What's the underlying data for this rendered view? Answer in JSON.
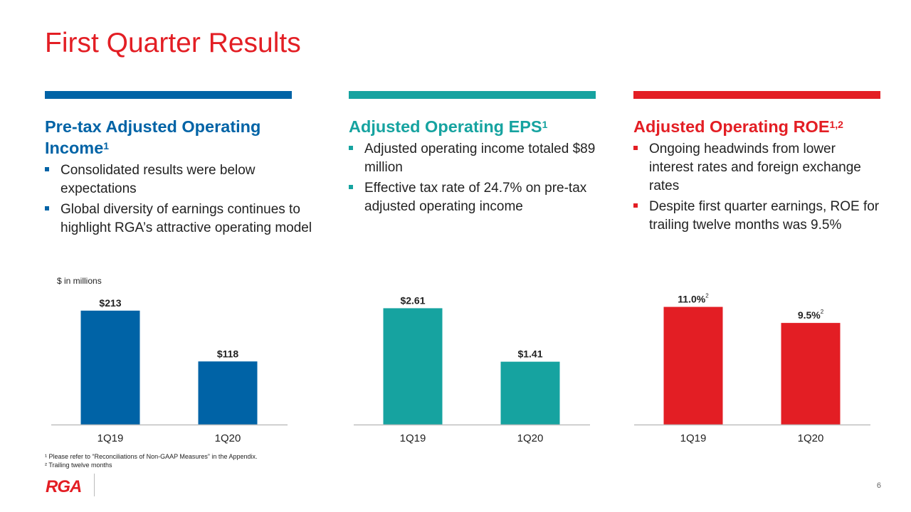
{
  "title": "First Quarter Results",
  "panels": [
    {
      "heading": "Pre-tax Adjusted Operating Income",
      "heading_line1": "Pre-tax Adjusted Operating",
      "heading_line2": "Income",
      "sup": "1",
      "color": "#0063a6",
      "bullets": [
        "Consolidated results were below expectations",
        "Global diversity of earnings continues to highlight RGA’s attractive operating model"
      ]
    },
    {
      "heading": "Adjusted Operating EPS",
      "sup": "1",
      "color": "#16a3a0",
      "bullets": [
        "Adjusted operating income totaled $89 million",
        "Effective tax rate of 24.7% on pre-tax adjusted operating income"
      ]
    },
    {
      "heading": "Adjusted Operating ROE",
      "sup": "1,2",
      "color": "#e31e24",
      "bullets": [
        "Ongoing headwinds from lower interest rates and foreign exchange rates",
        "Despite first quarter earnings, ROE for trailing twelve months was 9.5%"
      ]
    }
  ],
  "unit_note": "$ in millions",
  "chart_data": [
    {
      "type": "bar",
      "categories": [
        "1Q19",
        "1Q20"
      ],
      "values": [
        213,
        118
      ],
      "value_labels": [
        "$213",
        "$118"
      ],
      "color": "#0063a6",
      "ylim": [
        0,
        250
      ]
    },
    {
      "type": "bar",
      "categories": [
        "1Q19",
        "1Q20"
      ],
      "values": [
        2.61,
        1.41
      ],
      "value_labels": [
        "$2.61",
        "$1.41"
      ],
      "color": "#16a3a0",
      "ylim": [
        0,
        3.0
      ]
    },
    {
      "type": "bar",
      "categories": [
        "1Q19",
        "1Q20"
      ],
      "values": [
        11.0,
        9.5
      ],
      "value_labels": [
        "11.0%",
        "9.5%"
      ],
      "value_label_sup": "2",
      "color": "#e31e24",
      "ylim": [
        0,
        12.5
      ]
    }
  ],
  "footnotes": [
    "¹ Please refer to “Reconciliations of Non-GAAP Measures” in the Appendix.",
    "² Trailing twelve months"
  ],
  "logo": "RGA",
  "page_number": "6"
}
